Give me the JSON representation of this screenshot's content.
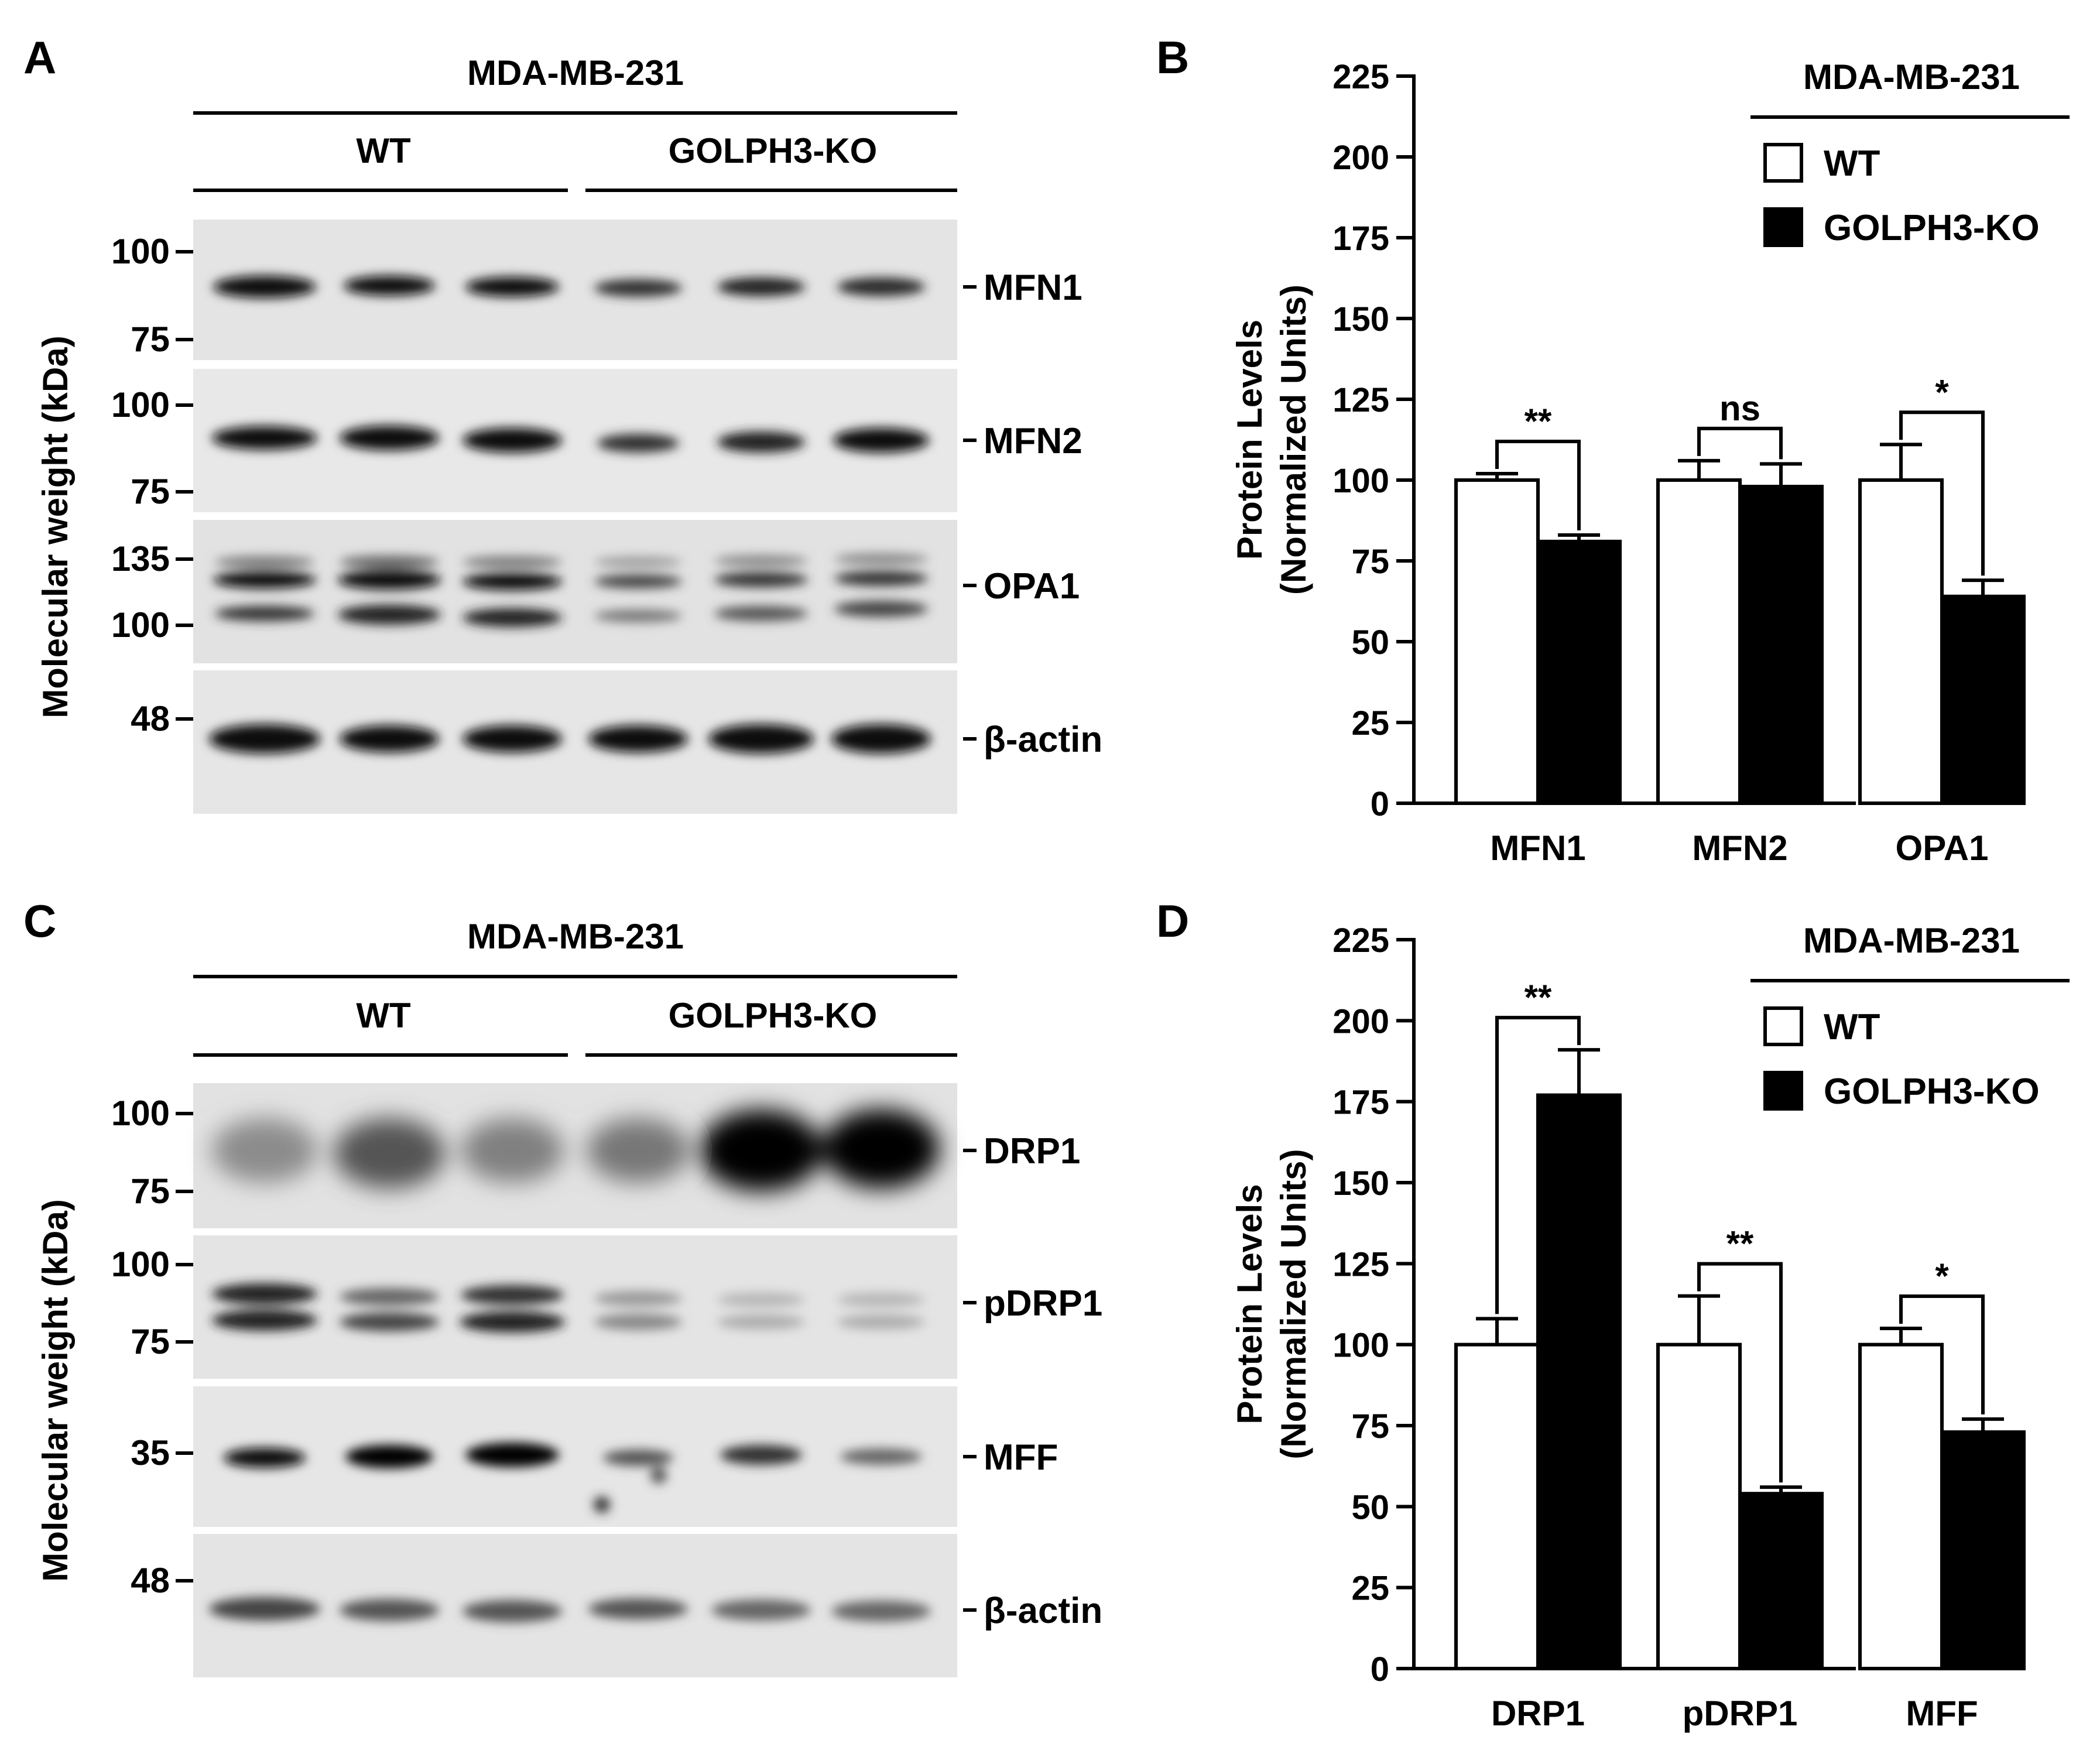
{
  "panels": {
    "a": "A",
    "b": "B",
    "c": "C",
    "d": "D"
  },
  "blot_top": {
    "cell_line": "MDA-MB-231",
    "groups": [
      "WT",
      "GOLPH3-KO"
    ],
    "ylabel": "Molecular weight (kDa)",
    "strips": [
      {
        "label": "MFN1",
        "markers": [
          "100",
          "75"
        ],
        "tone": "#e4e4e4"
      },
      {
        "label": "MFN2",
        "markers": [
          "100",
          "75"
        ],
        "tone": "#e8e8e8"
      },
      {
        "label": "OPA1",
        "markers": [
          "135",
          "100"
        ],
        "tone": "#e2e2e2"
      },
      {
        "label": "β-actin",
        "markers": [
          "48"
        ],
        "tone": "#e6e6e6"
      }
    ]
  },
  "blot_bottom": {
    "cell_line": "MDA-MB-231",
    "groups": [
      "WT",
      "GOLPH3-KO"
    ],
    "ylabel": "Molecular weight (kDa)",
    "strips": [
      {
        "label": "DRP1",
        "markers": [
          "100",
          "75"
        ],
        "tone": "#e2e2e2"
      },
      {
        "label": "pDRP1",
        "markers": [
          "100",
          "75"
        ],
        "tone": "#e4e4e4"
      },
      {
        "label": "MFF",
        "markers": [
          "35"
        ],
        "tone": "#e6e6e6"
      },
      {
        "label": "β-actin",
        "markers": [
          "48"
        ],
        "tone": "#e4e4e4"
      }
    ]
  },
  "chart_data": [
    {
      "type": "bar",
      "panel": "B",
      "legend_title": "MDA-MB-231",
      "categories": [
        "MFN1",
        "MFN2",
        "OPA1"
      ],
      "ylabel": "Protein Levels",
      "ylabel2": "(Normalized Units)",
      "ylim": [
        0,
        225
      ],
      "yticks": [
        "0",
        "25",
        "50",
        "75",
        "100",
        "125",
        "150",
        "175",
        "200",
        "225"
      ],
      "series": [
        {
          "name": "WT",
          "color": "#ffffff",
          "values": [
            100,
            100,
            100
          ],
          "errors": [
            2,
            6,
            11
          ]
        },
        {
          "name": "GOLPH3-KO",
          "color": "#000000",
          "values": [
            81,
            98,
            64
          ],
          "errors": [
            2,
            7,
            5
          ]
        }
      ],
      "significance": [
        "**",
        "ns",
        "*"
      ],
      "legend": "top-right"
    },
    {
      "type": "bar",
      "panel": "D",
      "legend_title": "MDA-MB-231",
      "categories": [
        "DRP1",
        "pDRP1",
        "MFF"
      ],
      "ylabel": "Protein Levels",
      "ylabel2": "(Normalized Units)",
      "ylim": [
        0,
        225
      ],
      "yticks": [
        "0",
        "25",
        "50",
        "75",
        "100",
        "125",
        "150",
        "175",
        "200",
        "225"
      ],
      "series": [
        {
          "name": "WT",
          "color": "#ffffff",
          "values": [
            100,
            100,
            100
          ],
          "errors": [
            8,
            15,
            5
          ]
        },
        {
          "name": "GOLPH3-KO",
          "color": "#000000",
          "values": [
            177,
            54,
            73
          ],
          "errors": [
            14,
            2,
            4
          ]
        }
      ],
      "significance": [
        "**",
        "**",
        "*"
      ],
      "legend": "top-right"
    }
  ]
}
